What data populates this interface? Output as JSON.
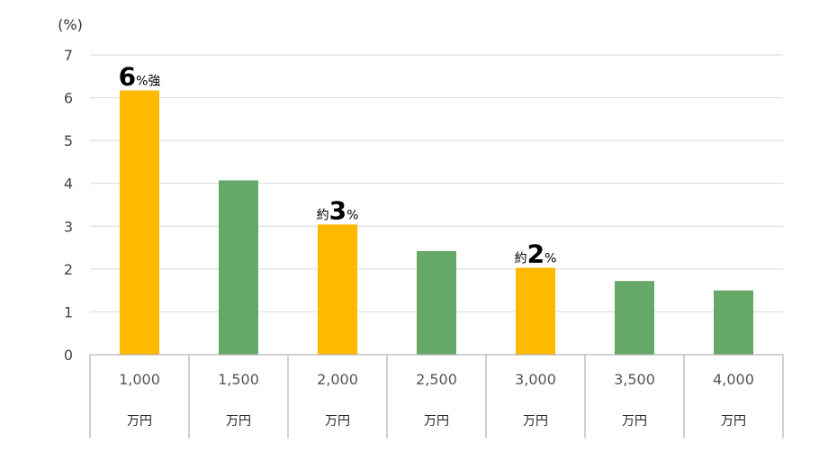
{
  "chart_data": {
    "type": "bar",
    "ylabel": "(%)",
    "ylim": [
      0,
      7
    ],
    "yticks": [
      "0",
      "1",
      "2",
      "3",
      "4",
      "5",
      "6",
      "7"
    ],
    "categories": [
      "1,000",
      "1,500",
      "2,000",
      "2,500",
      "3,000",
      "3,500",
      "4,000"
    ],
    "category_unit": "万円",
    "values": [
      6.17,
      4.07,
      3.04,
      2.42,
      2.03,
      1.72,
      1.5
    ],
    "highlight": [
      true,
      false,
      true,
      false,
      true,
      false,
      false
    ],
    "grid": true,
    "colors": {
      "highlight": "#FFB900",
      "normal": "#66A867",
      "grid": "#D9D9D9",
      "axis": "#A6A6A6"
    },
    "annotations": [
      {
        "index": 0,
        "prefix": "",
        "number": "6",
        "suffix": "%強"
      },
      {
        "index": 2,
        "prefix": "約",
        "number": "3",
        "suffix": "%"
      },
      {
        "index": 4,
        "prefix": "約",
        "number": "2",
        "suffix": "%"
      }
    ]
  }
}
